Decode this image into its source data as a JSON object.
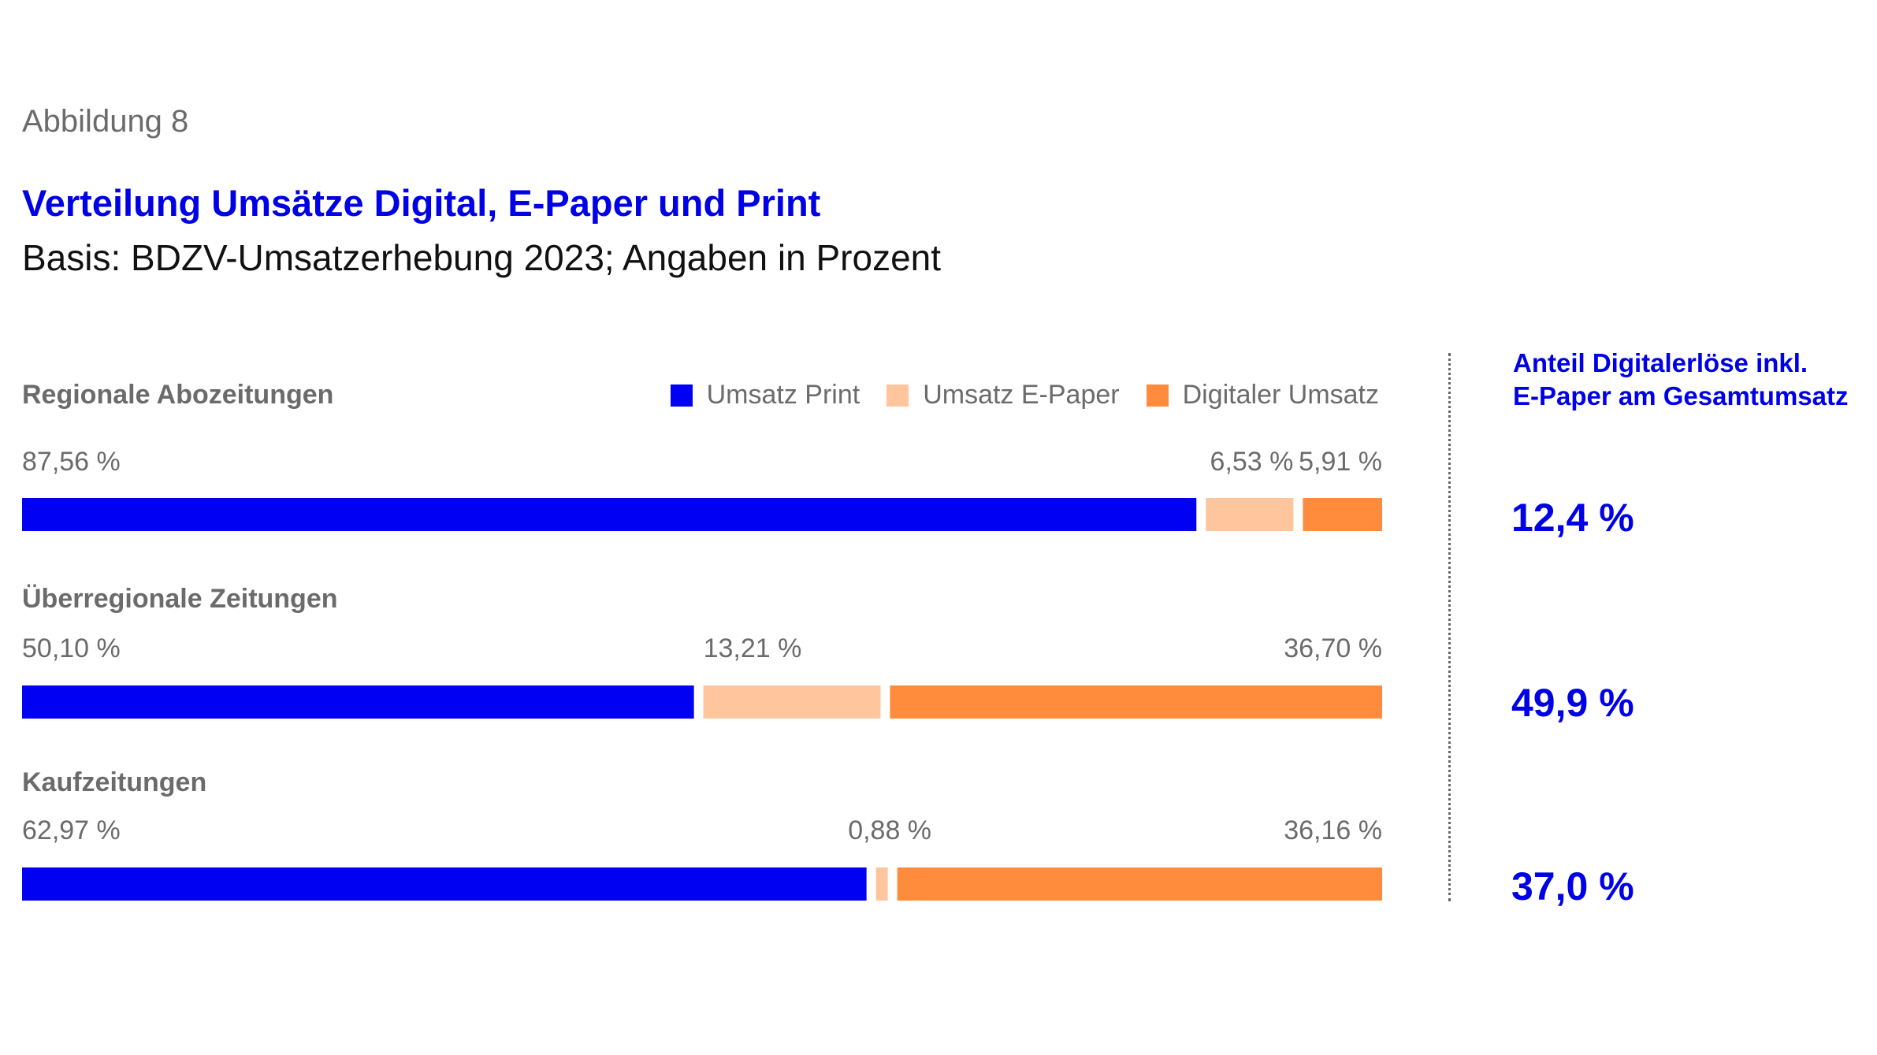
{
  "figure_label": "Abbildung 8",
  "title": "Verteilung Umsätze Digital, E-Paper und Print",
  "subtitle": "Basis: BDZV-Umsatzerhebung 2023; Angaben in Prozent",
  "legend": [
    {
      "label": "Umsatz Print",
      "color": "#0000f2"
    },
    {
      "label": "Umsatz E-Paper",
      "color": "#ffc59c"
    },
    {
      "label": "Digitaler Umsatz",
      "color": "#ff8c3c"
    }
  ],
  "side_panel": {
    "header_line1": "Anteil Digitalerlöse inkl.",
    "header_line2": "E-Paper am Gesamtumsatz",
    "values": [
      "12,4 %",
      "49,9 %",
      "37,0 %"
    ]
  },
  "chart_data": {
    "type": "bar",
    "orientation": "horizontal-stacked",
    "title": "Verteilung Umsätze Digital, E-Paper und Print",
    "subtitle": "Basis: BDZV-Umsatzerhebung 2023; Angaben in Prozent",
    "categories": [
      "Regionale Abozeitungen",
      "Überregionale Zeitungen",
      "Kaufzeitungen"
    ],
    "series": [
      {
        "name": "Umsatz Print",
        "color": "#0000f2",
        "values": [
          87.56,
          50.1,
          62.97
        ],
        "labels": [
          "87,56 %",
          "50,10 %",
          "62,97 %"
        ]
      },
      {
        "name": "Umsatz E-Paper",
        "color": "#ffc59c",
        "values": [
          6.53,
          13.21,
          0.88
        ],
        "labels": [
          "6,53 %",
          "13,21 %",
          "0,88 %"
        ]
      },
      {
        "name": "Digitaler Umsatz",
        "color": "#ff8c3c",
        "values": [
          5.91,
          36.7,
          36.16
        ],
        "labels": [
          "5,91 %",
          "36,70 %",
          "36,16 %"
        ]
      }
    ],
    "legend_position": "top-right",
    "grid": false
  }
}
